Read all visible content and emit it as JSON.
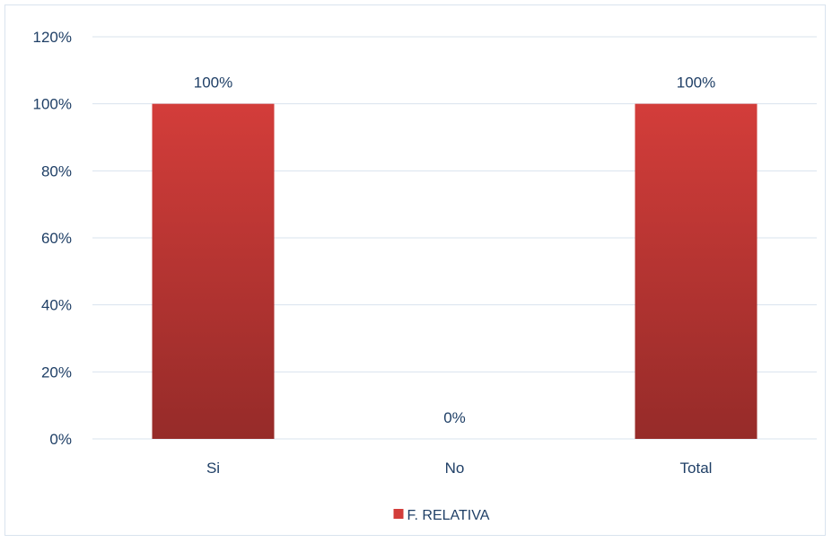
{
  "chart_data": {
    "type": "bar",
    "title": "",
    "xlabel": "",
    "ylabel": "",
    "categories": [
      "Si",
      "No",
      "Total"
    ],
    "series": [
      {
        "name": "F. RELATIVA",
        "values": [
          100,
          0,
          100
        ],
        "value_labels": [
          "100%",
          "0%",
          "100%"
        ]
      }
    ],
    "ylim": [
      0,
      120
    ],
    "yticks": [
      "0%",
      "20%",
      "40%",
      "60%",
      "80%",
      "100%",
      "120%"
    ],
    "grid": true,
    "legend_position": "bottom",
    "colors": {
      "bar_top": "#d33d3a",
      "bar_bottom": "#962b29",
      "grid": "#d9e3ee",
      "text": "#1f3f66"
    }
  }
}
